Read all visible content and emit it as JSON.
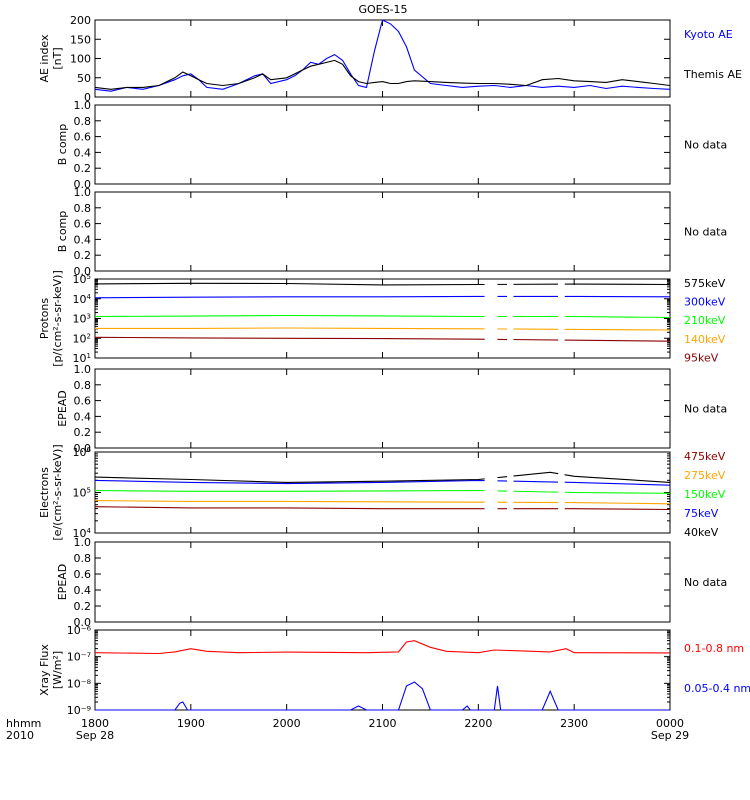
{
  "title": "GOES-15",
  "time_axis": {
    "prefix_top": "hhmm",
    "prefix_bottom": "2010",
    "ticks": [
      "1800",
      "1900",
      "2000",
      "2100",
      "2200",
      "2300",
      "0000"
    ],
    "dates": [
      {
        "tick": "1800",
        "label": "Sep 28"
      },
      {
        "tick": "0000",
        "label": "Sep 29"
      }
    ],
    "range_hours": [
      18,
      24
    ]
  },
  "colors": {
    "black": "#000000",
    "blue": "#0000ff",
    "red": "#ff0000",
    "green": "#00ff00",
    "orange": "#ffa500",
    "darkred": "#8b0000"
  },
  "chart_data": [
    {
      "id": "ae",
      "type": "line",
      "ylabel": [
        "AE index",
        "[nT]"
      ],
      "ylim": [
        0,
        200
      ],
      "yticks": [
        "0",
        "50",
        "100",
        "150",
        "200"
      ],
      "series": [
        {
          "name": "Kyoto AE",
          "color": "#0000ff",
          "x": [
            "1800",
            "1810",
            "1820",
            "1830",
            "1840",
            "1850",
            "1855",
            "1900",
            "1905",
            "1910",
            "1920",
            "1930",
            "1940",
            "1945",
            "1950",
            "2000",
            "2005",
            "2010",
            "2015",
            "2020",
            "2025",
            "2030",
            "2035",
            "2040",
            "2045",
            "2050",
            "2055",
            "2100",
            "2105",
            "2110",
            "2115",
            "2120",
            "2130",
            "2140",
            "2150",
            "2200",
            "2210",
            "2220",
            "2230",
            "2240",
            "2250",
            "2300",
            "2310",
            "2320",
            "2330",
            "2340",
            "2350",
            "0000"
          ],
          "values": [
            20,
            15,
            25,
            20,
            30,
            45,
            55,
            60,
            45,
            25,
            20,
            35,
            55,
            60,
            35,
            45,
            55,
            70,
            90,
            85,
            100,
            110,
            95,
            60,
            30,
            25,
            120,
            200,
            190,
            170,
            130,
            70,
            35,
            30,
            25,
            28,
            30,
            25,
            30,
            25,
            28,
            25,
            30,
            22,
            28,
            25,
            22,
            20
          ]
        },
        {
          "name": "Themis AE",
          "color": "#000000",
          "x": [
            "1800",
            "1810",
            "1820",
            "1830",
            "1840",
            "1850",
            "1855",
            "1900",
            "1905",
            "1910",
            "1920",
            "1930",
            "1940",
            "1945",
            "1950",
            "2000",
            "2005",
            "2010",
            "2015",
            "2020",
            "2025",
            "2030",
            "2035",
            "2040",
            "2045",
            "2050",
            "2055",
            "2100",
            "2105",
            "2110",
            "2115",
            "2120",
            "2130",
            "2140",
            "2150",
            "2200",
            "2210",
            "2220",
            "2230",
            "2240",
            "2250",
            "2300",
            "2310",
            "2320",
            "2330",
            "2340",
            "2350",
            "0000"
          ],
          "values": [
            25,
            20,
            25,
            25,
            30,
            50,
            65,
            55,
            45,
            35,
            30,
            35,
            50,
            60,
            45,
            50,
            60,
            70,
            80,
            85,
            90,
            95,
            85,
            55,
            40,
            35,
            38,
            40,
            35,
            35,
            40,
            42,
            40,
            38,
            36,
            35,
            35,
            33,
            30,
            45,
            48,
            42,
            40,
            38,
            45,
            40,
            35,
            30
          ]
        }
      ]
    },
    {
      "id": "bcomp1",
      "type": "line",
      "ylabel": [
        "B comp"
      ],
      "ylim": [
        0,
        1
      ],
      "yticks": [
        "0.0",
        "0.2",
        "0.4",
        "0.6",
        "0.8",
        "1.0"
      ],
      "message": "No data"
    },
    {
      "id": "bcomp2",
      "type": "line",
      "ylabel": [
        "B comp"
      ],
      "ylim": [
        0,
        1
      ],
      "yticks": [
        "0.0",
        "0.2",
        "0.4",
        "0.6",
        "0.8",
        "1.0"
      ],
      "message": "No data"
    },
    {
      "id": "protons",
      "type": "line",
      "log": true,
      "ylabel": [
        "Protons",
        "[p/(cm²-s-sr-keV)]"
      ],
      "ylim_exp": [
        1,
        5
      ],
      "yticks_exp": [
        "1",
        "2",
        "3",
        "4",
        "5"
      ],
      "gaps": [
        [
          "2204",
          "2212"
        ],
        [
          "2218",
          "2222"
        ],
        [
          "2250",
          "2254"
        ]
      ],
      "series": [
        {
          "name": "575keV",
          "color": "#000000",
          "log10": [
            [
              "1800",
              4.75
            ],
            [
              "1900",
              4.78
            ],
            [
              "2000",
              4.77
            ],
            [
              "2100",
              4.7
            ],
            [
              "2200",
              4.72
            ],
            [
              "2300",
              4.74
            ],
            [
              "0000",
              4.72
            ]
          ]
        },
        {
          "name": "300keV",
          "color": "#0000ff",
          "log10": [
            [
              "1800",
              4.05
            ],
            [
              "1900",
              4.08
            ],
            [
              "2000",
              4.1
            ],
            [
              "2100",
              4.1
            ],
            [
              "2200",
              4.12
            ],
            [
              "2300",
              4.12
            ],
            [
              "0000",
              4.1
            ]
          ]
        },
        {
          "name": "210keV",
          "color": "#00ff00",
          "log10": [
            [
              "1800",
              3.1
            ],
            [
              "1900",
              3.12
            ],
            [
              "2000",
              3.15
            ],
            [
              "2100",
              3.13
            ],
            [
              "2200",
              3.1
            ],
            [
              "2300",
              3.1
            ],
            [
              "0000",
              3.05
            ]
          ]
        },
        {
          "name": "140keV",
          "color": "#ffa500",
          "log10": [
            [
              "1800",
              2.5
            ],
            [
              "1900",
              2.5
            ],
            [
              "2000",
              2.52
            ],
            [
              "2100",
              2.5
            ],
            [
              "2200",
              2.48
            ],
            [
              "2300",
              2.45
            ],
            [
              "0000",
              2.42
            ]
          ]
        },
        {
          "name": "95keV",
          "color": "#8b0000",
          "log10": [
            [
              "1800",
              2.05
            ],
            [
              "1900",
              2.02
            ],
            [
              "2000",
              2.0
            ],
            [
              "2100",
              1.98
            ],
            [
              "2200",
              1.95
            ],
            [
              "2300",
              1.9
            ],
            [
              "0000",
              1.85
            ]
          ]
        }
      ]
    },
    {
      "id": "epead1",
      "type": "line",
      "ylabel": [
        "EPEAD"
      ],
      "ylim": [
        0,
        1
      ],
      "yticks": [
        "0.0",
        "0.2",
        "0.4",
        "0.6",
        "0.8",
        "1.0"
      ],
      "message": "No data"
    },
    {
      "id": "electrons",
      "type": "line",
      "log": true,
      "ylabel": [
        "Electrons",
        "[e/(cm²-s-sr-keV)]"
      ],
      "ylim_exp": [
        4,
        6
      ],
      "yticks_exp": [
        "4",
        "5",
        "6"
      ],
      "gaps": [
        [
          "2204",
          "2212"
        ],
        [
          "2218",
          "2222"
        ],
        [
          "2250",
          "2254"
        ]
      ],
      "series": [
        {
          "name": "475keV",
          "color": "#8b0000",
          "log10": [
            [
              "1800",
              4.65
            ],
            [
              "1900",
              4.62
            ],
            [
              "2000",
              4.62
            ],
            [
              "2100",
              4.6
            ],
            [
              "2200",
              4.6
            ],
            [
              "2300",
              4.6
            ],
            [
              "0000",
              4.58
            ]
          ]
        },
        {
          "name": "275keV",
          "color": "#ffa500",
          "log10": [
            [
              "1800",
              4.8
            ],
            [
              "1900",
              4.78
            ],
            [
              "2000",
              4.78
            ],
            [
              "2100",
              4.77
            ],
            [
              "2200",
              4.76
            ],
            [
              "2300",
              4.75
            ],
            [
              "0000",
              4.72
            ]
          ]
        },
        {
          "name": "150keV",
          "color": "#00ff00",
          "log10": [
            [
              "1800",
              5.05
            ],
            [
              "1900",
              5.03
            ],
            [
              "2000",
              5.03
            ],
            [
              "2100",
              5.04
            ],
            [
              "2200",
              5.05
            ],
            [
              "2300",
              5.0
            ],
            [
              "0000",
              4.98
            ]
          ]
        },
        {
          "name": "75keV",
          "color": "#0000ff",
          "log10": [
            [
              "1800",
              5.3
            ],
            [
              "1900",
              5.25
            ],
            [
              "2000",
              5.22
            ],
            [
              "2100",
              5.25
            ],
            [
              "2200",
              5.3
            ],
            [
              "2300",
              5.25
            ],
            [
              "0000",
              5.18
            ]
          ]
        },
        {
          "name": "40keV",
          "color": "#000000",
          "log10": [
            [
              "1800",
              5.38
            ],
            [
              "1900",
              5.32
            ],
            [
              "2000",
              5.25
            ],
            [
              "2100",
              5.28
            ],
            [
              "2200",
              5.32
            ],
            [
              "2245",
              5.5
            ],
            [
              "2300",
              5.4
            ],
            [
              "0000",
              5.25
            ]
          ]
        }
      ]
    },
    {
      "id": "epead2",
      "type": "line",
      "ylabel": [
        "EPEAD"
      ],
      "ylim": [
        0,
        1
      ],
      "yticks": [
        "0.0",
        "0.2",
        "0.4",
        "0.6",
        "0.8",
        "1.0"
      ],
      "message": "No data"
    },
    {
      "id": "xray",
      "type": "line",
      "log": true,
      "ylabel": [
        "Xray Flux",
        "[W/m²]"
      ],
      "ylim_exp": [
        -9,
        -6
      ],
      "ytick_labels": [
        "10⁻⁹",
        "10⁻⁸",
        "10⁻⁷",
        "10⁻⁶"
      ],
      "series": [
        {
          "name": "0.1-0.8 nm",
          "color": "#ff0000",
          "log10": [
            [
              "1800",
              -6.85
            ],
            [
              "1840",
              -6.88
            ],
            [
              "1850",
              -6.82
            ],
            [
              "1900",
              -6.7
            ],
            [
              "1910",
              -6.8
            ],
            [
              "1930",
              -6.85
            ],
            [
              "2000",
              -6.83
            ],
            [
              "2050",
              -6.85
            ],
            [
              "2110",
              -6.82
            ],
            [
              "2115",
              -6.45
            ],
            [
              "2120",
              -6.4
            ],
            [
              "2130",
              -6.65
            ],
            [
              "2140",
              -6.8
            ],
            [
              "2200",
              -6.85
            ],
            [
              "2210",
              -6.75
            ],
            [
              "2245",
              -6.82
            ],
            [
              "2255",
              -6.7
            ],
            [
              "2300",
              -6.85
            ],
            [
              "0000",
              -6.86
            ]
          ]
        },
        {
          "name": "0.05-0.4 nm",
          "color": "#0000ff",
          "log10": [
            [
              "1800",
              -9.0
            ],
            [
              "1850",
              -9.0
            ],
            [
              "1853",
              -8.75
            ],
            [
              "1855",
              -8.7
            ],
            [
              "1858",
              -9.0
            ],
            [
              "2040",
              -9.0
            ],
            [
              "2045",
              -8.85
            ],
            [
              "2050",
              -9.0
            ],
            [
              "2110",
              -9.0
            ],
            [
              "2115",
              -8.1
            ],
            [
              "2120",
              -7.95
            ],
            [
              "2125",
              -8.2
            ],
            [
              "2130",
              -9.0
            ],
            [
              "2150",
              -9.0
            ],
            [
              "2153",
              -8.85
            ],
            [
              "2155",
              -9.0
            ],
            [
              "2210",
              -9.0
            ],
            [
              "2212",
              -8.1
            ],
            [
              "2214",
              -9.0
            ],
            [
              "2240",
              -9.0
            ],
            [
              "2245",
              -8.3
            ],
            [
              "2250",
              -9.0
            ],
            [
              "0000",
              -9.0
            ]
          ]
        }
      ]
    }
  ]
}
